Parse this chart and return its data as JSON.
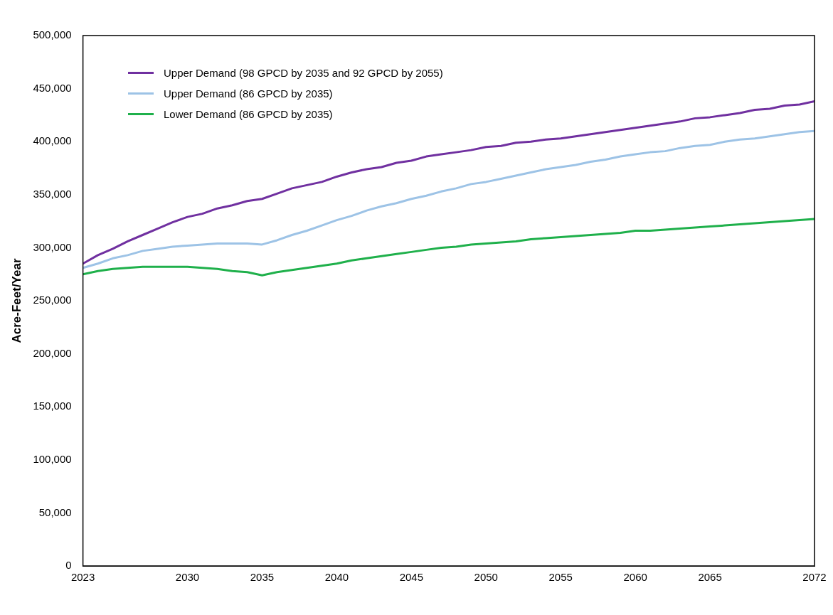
{
  "chart_data": {
    "type": "line",
    "ylabel": "Acre-Feet/Year",
    "x": [
      2023,
      2024,
      2025,
      2026,
      2027,
      2028,
      2029,
      2030,
      2031,
      2032,
      2033,
      2034,
      2035,
      2036,
      2037,
      2038,
      2039,
      2040,
      2041,
      2042,
      2043,
      2044,
      2045,
      2046,
      2047,
      2048,
      2049,
      2050,
      2051,
      2052,
      2053,
      2054,
      2055,
      2056,
      2057,
      2058,
      2059,
      2060,
      2061,
      2062,
      2063,
      2064,
      2065,
      2066,
      2067,
      2068,
      2069,
      2070,
      2071,
      2072
    ],
    "series": [
      {
        "name": "Upper Demand (98 GPCD by 2035 and 92 GPCD by 2055)",
        "color": "#7030a0",
        "values": [
          285000,
          293000,
          299000,
          306000,
          312000,
          318000,
          324000,
          329000,
          332000,
          337000,
          340000,
          344000,
          346000,
          351000,
          356000,
          359000,
          362000,
          367000,
          371000,
          374000,
          376000,
          380000,
          382000,
          386000,
          388000,
          390000,
          392000,
          395000,
          396000,
          399000,
          400000,
          402000,
          403000,
          405000,
          407000,
          409000,
          411000,
          413000,
          415000,
          417000,
          419000,
          422000,
          423000,
          425000,
          427000,
          430000,
          431000,
          434000,
          435000,
          438000
        ]
      },
      {
        "name": "Upper Demand (86 GPCD by 2035)",
        "color": "#9dc3e6",
        "values": [
          281000,
          285000,
          290000,
          293000,
          297000,
          299000,
          301000,
          302000,
          303000,
          304000,
          304000,
          304000,
          303000,
          307000,
          312000,
          316000,
          321000,
          326000,
          330000,
          335000,
          339000,
          342000,
          346000,
          349000,
          353000,
          356000,
          360000,
          362000,
          365000,
          368000,
          371000,
          374000,
          376000,
          378000,
          381000,
          383000,
          386000,
          388000,
          390000,
          391000,
          394000,
          396000,
          397000,
          400000,
          402000,
          403000,
          405000,
          407000,
          409000,
          410000
        ]
      },
      {
        "name": "Lower Demand (86 GPCD by 2035)",
        "color": "#1fb04b",
        "values": [
          275000,
          278000,
          280000,
          281000,
          282000,
          282000,
          282000,
          282000,
          281000,
          280000,
          278000,
          277000,
          274000,
          277000,
          279000,
          281000,
          283000,
          285000,
          288000,
          290000,
          292000,
          294000,
          296000,
          298000,
          300000,
          301000,
          303000,
          304000,
          305000,
          306000,
          308000,
          309000,
          310000,
          311000,
          312000,
          313000,
          314000,
          316000,
          316000,
          317000,
          318000,
          319000,
          320000,
          321000,
          322000,
          323000,
          324000,
          325000,
          326000,
          327000
        ]
      }
    ],
    "xlim": [
      2023,
      2072
    ],
    "xticks": [
      2023,
      2030,
      2035,
      2040,
      2045,
      2050,
      2055,
      2060,
      2065,
      2072
    ],
    "ylim": [
      0,
      500000
    ],
    "yticks": [
      0,
      {
        "value": 50000,
        "label": "50,000"
      },
      {
        "value": 100000,
        "label": "100,000"
      },
      {
        "value": 150000,
        "label": "150,000"
      },
      {
        "value": 200000,
        "label": "200,000"
      },
      {
        "value": 250000,
        "label": "250,000"
      },
      {
        "value": 300000,
        "label": "300,000"
      },
      {
        "value": 350000,
        "label": "350,000"
      },
      {
        "value": 400000,
        "label": "400,000"
      },
      {
        "value": 450000,
        "label": "450,000"
      },
      {
        "value": 500000,
        "label": "500,000"
      }
    ],
    "grid": false,
    "legend": "top left",
    "marker": "none",
    "line_style": "solid"
  }
}
